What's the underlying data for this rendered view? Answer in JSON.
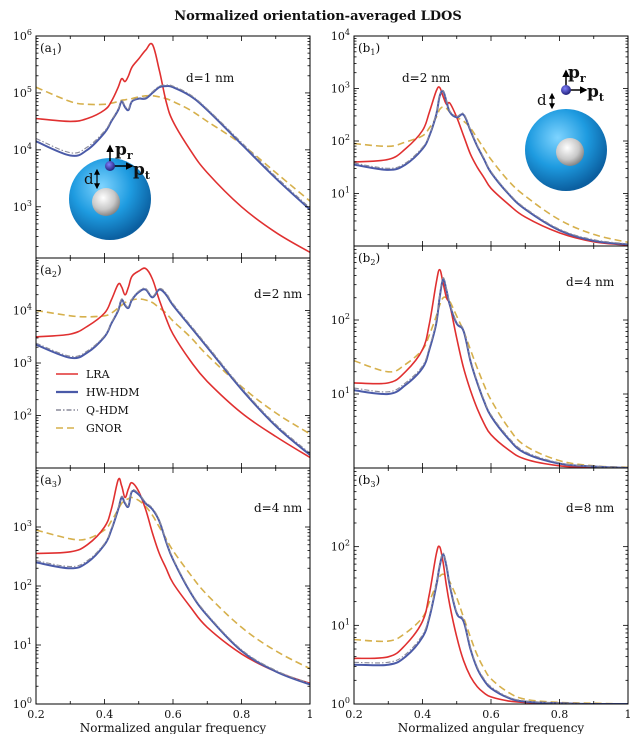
{
  "figure": {
    "title": "Normalized orientation-averaged LDOS"
  },
  "legend": [
    {
      "label": "LRA",
      "color": "#e03030",
      "dash": ""
    },
    {
      "label": "HW-HDM",
      "color": "#4a5aa8",
      "dash": ""
    },
    {
      "label": "Q-HDM",
      "color": "#8a8a9a",
      "dash": "5,2,1.5,2"
    },
    {
      "label": "GNOR",
      "color": "#d6b04c",
      "dash": "7,4"
    }
  ],
  "colors": {
    "LRA": "#e03030",
    "HW-HDM": "#4a5aa8",
    "Q-HDM": "#8a8a9a",
    "GNOR": "#d6b04c",
    "shell": "#1e9be0",
    "core": "#c8c8c8",
    "dipole": "#2a2a8a"
  },
  "chart_data": [
    {
      "id": "a1",
      "type": "line",
      "label": "(a",
      "label_sub": "1",
      "label_close": ")",
      "annotation": "d=1 nm",
      "xlabel": "",
      "ylabel": "",
      "xlim": [
        0.2,
        1.0
      ],
      "ylim_log10": [
        2.1,
        6.0
      ],
      "yscale": "log",
      "yticks": [
        {
          "pow": "3"
        },
        {
          "pow": "4"
        },
        {
          "pow": "5"
        },
        {
          "pow": "6"
        }
      ],
      "x": [
        0.2,
        0.3,
        0.35,
        0.4,
        0.42,
        0.44,
        0.45,
        0.46,
        0.47,
        0.48,
        0.5,
        0.52,
        0.54,
        0.56,
        0.58,
        0.6,
        0.65,
        0.7,
        0.8,
        0.9,
        1.0
      ],
      "series": [
        {
          "name": "LRA",
          "log10": [
            4.55,
            4.5,
            4.55,
            4.7,
            4.85,
            5.1,
            5.25,
            5.2,
            5.3,
            5.45,
            5.6,
            5.75,
            5.85,
            5.4,
            4.85,
            4.5,
            4.0,
            3.6,
            3.0,
            2.55,
            2.2
          ]
        },
        {
          "name": "HW-HDM",
          "log10": [
            4.15,
            3.9,
            4.0,
            4.3,
            4.5,
            4.7,
            4.85,
            4.75,
            4.7,
            4.85,
            4.9,
            4.9,
            5.0,
            5.1,
            5.12,
            5.1,
            4.95,
            4.7,
            4.1,
            3.5,
            2.95
          ]
        },
        {
          "name": "Q-HDM",
          "log10": [
            4.2,
            3.95,
            4.05,
            4.33,
            4.52,
            4.72,
            4.87,
            4.77,
            4.72,
            4.86,
            4.91,
            4.92,
            5.02,
            5.12,
            5.14,
            5.12,
            4.97,
            4.72,
            4.13,
            3.53,
            2.98
          ]
        },
        {
          "name": "GNOR",
          "log10": [
            5.1,
            4.85,
            4.8,
            4.8,
            4.82,
            4.85,
            4.87,
            4.88,
            4.89,
            4.9,
            4.93,
            4.95,
            4.95,
            4.93,
            4.9,
            4.85,
            4.7,
            4.5,
            4.1,
            3.6,
            3.1
          ]
        }
      ]
    },
    {
      "id": "b1",
      "type": "line",
      "label": "(b",
      "label_sub": "1",
      "label_close": ")",
      "annotation": "d=2 nm",
      "xlabel": "",
      "ylabel": "",
      "xlim": [
        0.2,
        1.0
      ],
      "ylim_log10": [
        0.0,
        4.0
      ],
      "yscale": "log",
      "yticks": [
        {
          "pow": "1"
        },
        {
          "pow": "2"
        },
        {
          "pow": "3"
        },
        {
          "pow": "4"
        }
      ],
      "x": [
        0.2,
        0.3,
        0.35,
        0.4,
        0.42,
        0.44,
        0.45,
        0.46,
        0.47,
        0.48,
        0.5,
        0.52,
        0.54,
        0.56,
        0.58,
        0.6,
        0.65,
        0.7,
        0.8,
        0.9,
        1.0
      ],
      "series": [
        {
          "name": "LRA",
          "log10": [
            1.6,
            1.65,
            1.85,
            2.2,
            2.55,
            2.95,
            3.02,
            2.85,
            2.7,
            2.72,
            2.45,
            2.1,
            1.75,
            1.5,
            1.3,
            1.1,
            0.8,
            0.55,
            0.25,
            0.08,
            0.02
          ]
        },
        {
          "name": "HW-HDM",
          "log10": [
            1.55,
            1.45,
            1.55,
            1.85,
            2.1,
            2.5,
            2.85,
            2.95,
            2.75,
            2.55,
            2.45,
            2.5,
            2.2,
            1.9,
            1.65,
            1.4,
            1.0,
            0.7,
            0.3,
            0.1,
            0.03
          ]
        },
        {
          "name": "Q-HDM",
          "log10": [
            1.58,
            1.48,
            1.58,
            1.88,
            2.12,
            2.52,
            2.87,
            2.96,
            2.77,
            2.57,
            2.47,
            2.52,
            2.22,
            1.92,
            1.67,
            1.42,
            1.02,
            0.72,
            0.32,
            0.12,
            0.04
          ]
        },
        {
          "name": "GNOR",
          "log10": [
            1.95,
            1.9,
            1.98,
            2.1,
            2.25,
            2.45,
            2.6,
            2.65,
            2.62,
            2.55,
            2.45,
            2.38,
            2.25,
            2.05,
            1.85,
            1.65,
            1.25,
            0.95,
            0.5,
            0.22,
            0.07
          ]
        }
      ]
    },
    {
      "id": "a2",
      "type": "line",
      "label": "(a",
      "label_sub": "2",
      "label_close": ")",
      "annotation": "d=2 nm",
      "xlabel": "",
      "ylabel": "",
      "xlim": [
        0.2,
        1.0
      ],
      "ylim_log10": [
        1.0,
        5.0
      ],
      "yscale": "log",
      "yticks": [
        {
          "pow": "2"
        },
        {
          "pow": "3"
        },
        {
          "pow": "4"
        }
      ],
      "x": [
        0.2,
        0.3,
        0.35,
        0.4,
        0.42,
        0.44,
        0.45,
        0.46,
        0.47,
        0.48,
        0.5,
        0.52,
        0.54,
        0.56,
        0.58,
        0.6,
        0.65,
        0.7,
        0.8,
        0.9,
        1.0
      ],
      "series": [
        {
          "name": "LRA",
          "log10": [
            3.5,
            3.55,
            3.7,
            3.95,
            4.2,
            4.5,
            4.45,
            4.3,
            4.45,
            4.65,
            4.75,
            4.8,
            4.6,
            4.2,
            3.85,
            3.55,
            3.05,
            2.65,
            2.05,
            1.6,
            1.2
          ]
        },
        {
          "name": "HW-HDM",
          "log10": [
            3.35,
            3.1,
            3.2,
            3.5,
            3.75,
            4.0,
            4.2,
            4.1,
            4.05,
            4.2,
            4.35,
            4.4,
            4.25,
            4.4,
            4.3,
            4.1,
            3.7,
            3.3,
            2.5,
            1.8,
            1.25
          ]
        },
        {
          "name": "Q-HDM",
          "log10": [
            3.38,
            3.13,
            3.23,
            3.52,
            3.77,
            4.02,
            4.22,
            4.12,
            4.07,
            4.22,
            4.37,
            4.42,
            4.27,
            4.42,
            4.33,
            4.13,
            3.73,
            3.33,
            2.53,
            1.83,
            1.28
          ]
        },
        {
          "name": "GNOR",
          "log10": [
            4.0,
            3.9,
            3.88,
            3.9,
            3.95,
            4.05,
            4.1,
            4.15,
            4.18,
            4.2,
            4.22,
            4.2,
            4.15,
            4.05,
            3.95,
            3.8,
            3.5,
            3.15,
            2.55,
            2.05,
            1.65
          ]
        }
      ]
    },
    {
      "id": "b2",
      "type": "line",
      "label": "(b",
      "label_sub": "2",
      "label_close": ")",
      "annotation": "d=4 nm",
      "xlabel": "",
      "ylabel": "",
      "xlim": [
        0.2,
        1.0
      ],
      "ylim_log10": [
        0.0,
        3.0
      ],
      "yscale": "log",
      "yticks": [
        {
          "pow": "1"
        },
        {
          "pow": "2"
        }
      ],
      "x": [
        0.2,
        0.3,
        0.35,
        0.4,
        0.42,
        0.44,
        0.45,
        0.46,
        0.47,
        0.48,
        0.5,
        0.52,
        0.54,
        0.56,
        0.58,
        0.6,
        0.65,
        0.7,
        0.8,
        0.9,
        1.0
      ],
      "series": [
        {
          "name": "LRA",
          "log10": [
            1.15,
            1.15,
            1.3,
            1.6,
            1.95,
            2.5,
            2.68,
            2.5,
            2.3,
            2.2,
            1.75,
            1.35,
            1.05,
            0.8,
            0.6,
            0.45,
            0.25,
            0.12,
            0.03,
            0.01,
            0.0
          ]
        },
        {
          "name": "HW-HDM",
          "log10": [
            1.05,
            1.0,
            1.12,
            1.35,
            1.6,
            1.95,
            2.3,
            2.55,
            2.4,
            2.2,
            1.95,
            1.85,
            1.45,
            1.15,
            0.9,
            0.7,
            0.4,
            0.2,
            0.06,
            0.02,
            0.0
          ]
        },
        {
          "name": "Q-HDM",
          "log10": [
            1.08,
            1.03,
            1.15,
            1.38,
            1.63,
            1.98,
            2.33,
            2.57,
            2.42,
            2.22,
            1.97,
            1.87,
            1.47,
            1.17,
            0.92,
            0.72,
            0.42,
            0.22,
            0.07,
            0.02,
            0.0
          ]
        },
        {
          "name": "GNOR",
          "log10": [
            1.45,
            1.3,
            1.4,
            1.6,
            1.8,
            2.05,
            2.2,
            2.3,
            2.3,
            2.25,
            2.05,
            1.85,
            1.6,
            1.35,
            1.12,
            0.92,
            0.55,
            0.3,
            0.1,
            0.03,
            0.01
          ]
        }
      ]
    },
    {
      "id": "a3",
      "type": "line",
      "label": "(a",
      "label_sub": "3",
      "label_close": ")",
      "annotation": "d=4 nm",
      "xlabel": "Normalized angular frequency",
      "ylabel": "",
      "xlim": [
        0.2,
        1.0
      ],
      "ylim_log10": [
        0.0,
        4.0
      ],
      "yscale": "log",
      "yticks": [
        {
          "pow": "0"
        },
        {
          "pow": "1"
        },
        {
          "pow": "2"
        },
        {
          "pow": "3"
        }
      ],
      "xticks": [
        "0.2",
        "0.4",
        "0.6",
        "0.8",
        "1"
      ],
      "x": [
        0.2,
        0.3,
        0.35,
        0.4,
        0.42,
        0.44,
        0.45,
        0.46,
        0.47,
        0.48,
        0.5,
        0.52,
        0.54,
        0.56,
        0.58,
        0.6,
        0.65,
        0.7,
        0.8,
        0.9,
        1.0
      ],
      "series": [
        {
          "name": "LRA",
          "log10": [
            2.55,
            2.58,
            2.7,
            3.0,
            3.3,
            3.8,
            3.7,
            3.5,
            3.65,
            3.75,
            3.6,
            3.3,
            2.9,
            2.55,
            2.3,
            2.05,
            1.65,
            1.3,
            0.85,
            0.55,
            0.35
          ]
        },
        {
          "name": "HW-HDM",
          "log10": [
            2.4,
            2.3,
            2.4,
            2.7,
            2.95,
            3.3,
            3.5,
            3.4,
            3.35,
            3.6,
            3.55,
            3.4,
            3.3,
            3.1,
            2.75,
            2.45,
            1.9,
            1.5,
            0.9,
            0.55,
            0.33
          ]
        },
        {
          "name": "Q-HDM",
          "log10": [
            2.43,
            2.33,
            2.43,
            2.72,
            2.97,
            3.32,
            3.52,
            3.42,
            3.37,
            3.62,
            3.57,
            3.42,
            3.32,
            3.12,
            2.77,
            2.47,
            1.92,
            1.52,
            0.92,
            0.57,
            0.35
          ]
        },
        {
          "name": "GNOR",
          "log10": [
            2.95,
            2.8,
            2.8,
            2.95,
            3.1,
            3.3,
            3.4,
            3.45,
            3.48,
            3.5,
            3.45,
            3.35,
            3.2,
            3.0,
            2.8,
            2.6,
            2.2,
            1.85,
            1.3,
            0.9,
            0.6
          ]
        }
      ]
    },
    {
      "id": "b3",
      "type": "line",
      "label": "(b",
      "label_sub": "3",
      "label_close": ")",
      "annotation": "d=8 nm",
      "xlabel": "Normalized angular frequency",
      "ylabel": "",
      "xlim": [
        0.2,
        1.0
      ],
      "ylim_log10": [
        0.0,
        3.0
      ],
      "yscale": "log",
      "yticks": [
        {
          "pow": "0"
        },
        {
          "pow": "1"
        },
        {
          "pow": "2"
        }
      ],
      "xticks": [
        "0.2",
        "0.4",
        "0.6",
        "0.8",
        "1"
      ],
      "x": [
        0.2,
        0.3,
        0.35,
        0.4,
        0.42,
        0.44,
        0.45,
        0.46,
        0.47,
        0.48,
        0.5,
        0.52,
        0.54,
        0.56,
        0.58,
        0.6,
        0.65,
        0.7,
        0.8,
        0.9,
        1.0
      ],
      "series": [
        {
          "name": "LRA",
          "log10": [
            0.58,
            0.6,
            0.75,
            1.05,
            1.4,
            1.9,
            2.0,
            1.8,
            1.5,
            1.25,
            0.85,
            0.55,
            0.35,
            0.22,
            0.14,
            0.09,
            0.04,
            0.02,
            0.01,
            0.0,
            0.0
          ]
        },
        {
          "name": "HW-HDM",
          "log10": [
            0.5,
            0.5,
            0.6,
            0.85,
            1.1,
            1.5,
            1.75,
            1.9,
            1.75,
            1.5,
            1.15,
            1.05,
            0.7,
            0.45,
            0.3,
            0.2,
            0.08,
            0.03,
            0.01,
            0.0,
            0.0
          ]
        },
        {
          "name": "Q-HDM",
          "log10": [
            0.53,
            0.53,
            0.63,
            0.88,
            1.13,
            1.52,
            1.77,
            1.92,
            1.77,
            1.52,
            1.17,
            1.07,
            0.72,
            0.47,
            0.32,
            0.22,
            0.09,
            0.04,
            0.01,
            0.0,
            0.0
          ]
        },
        {
          "name": "GNOR",
          "log10": [
            0.82,
            0.8,
            0.9,
            1.1,
            1.3,
            1.52,
            1.62,
            1.65,
            1.62,
            1.55,
            1.35,
            1.1,
            0.85,
            0.62,
            0.45,
            0.32,
            0.15,
            0.06,
            0.02,
            0.01,
            0.0
          ]
        }
      ]
    }
  ],
  "insets": {
    "a1": {
      "p_r": "p",
      "p_r_sub": "r",
      "p_t": "p",
      "p_t_sub": "t",
      "d": "d"
    },
    "b1": {
      "p_r": "p",
      "p_r_sub": "r",
      "p_t": "p",
      "p_t_sub": "t",
      "d": "d"
    }
  }
}
